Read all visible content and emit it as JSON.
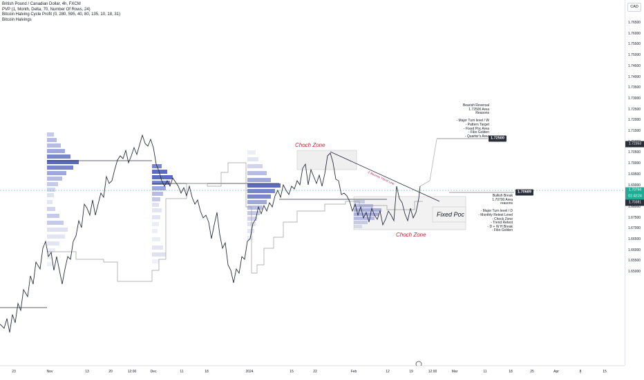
{
  "legend": {
    "title": "British Pound / Canadian Dollar, 4h, FXCM",
    "indicator1": "PVP (1, Month, Delta, 70, Number Of Rows, 24)",
    "indicator2": "Bitcoin Halving Cycle Profit (0, 280, 595, 40, 80, 135, 10, 18, 31)",
    "indicator3": "Bitcoin Halvings"
  },
  "currency": "CAD",
  "price_axis": {
    "ticks": [
      "1.76500",
      "1.76000",
      "1.75500",
      "1.75000",
      "1.74500",
      "1.74000",
      "1.73500",
      "1.73000",
      "1.72500",
      "1.72000",
      "1.71500",
      "1.71000",
      "1.70500",
      "1.70000",
      "1.69500",
      "1.69000",
      "1.68500",
      "1.68000",
      "1.67500",
      "1.67000",
      "1.66500",
      "1.66000",
      "1.65500",
      "1.65000"
    ],
    "labels": {
      "upper": "1.72353",
      "current": "1.70794",
      "countdown": "01:43:24",
      "lower": "1.70381"
    }
  },
  "time_axis": {
    "ticks": [
      "23",
      "Nov",
      "13",
      "20",
      "12:00",
      "Dec",
      "11",
      "18",
      "2024",
      "15",
      "22",
      "Feb",
      "12",
      "19",
      "12:00",
      "Mar",
      "11",
      "18",
      "25",
      "Apr",
      "8",
      "15"
    ]
  },
  "annotations": {
    "bearish": "Bearish Reversal\n1.72500 Area\nReasons\n\n- Major Turn level / W\n- Pattern Target\n- Fixed Poc Area\n- Fibo Golden\n- Quarter's Area",
    "bearish_price": "1.72500",
    "bullish": "Bullish Break\n1.70700 Area\nreasons\n\n- Major Turn level / D\n- Monthly Retest Level\n- Chock Zone\n- Trend Retest\n- D + W H Break\n- Fibo Golden",
    "bullish_price": "1.70689",
    "choch_top": "Choch Zone",
    "choch_bottom": "Choch Zone",
    "fixed_poc": "Fixed Poc",
    "trend_line": "2 Bounce Trend Line"
  },
  "colors": {
    "choch_text": "#b2263b",
    "trend_text": "#c2185b",
    "upper_label": "#2a2e39",
    "current_label": "#22ab94",
    "lower_label": "#2a2e39",
    "profile_up": "#5b6fd6",
    "profile_down": "#b7bce3",
    "candle": "#2a2e39"
  }
}
